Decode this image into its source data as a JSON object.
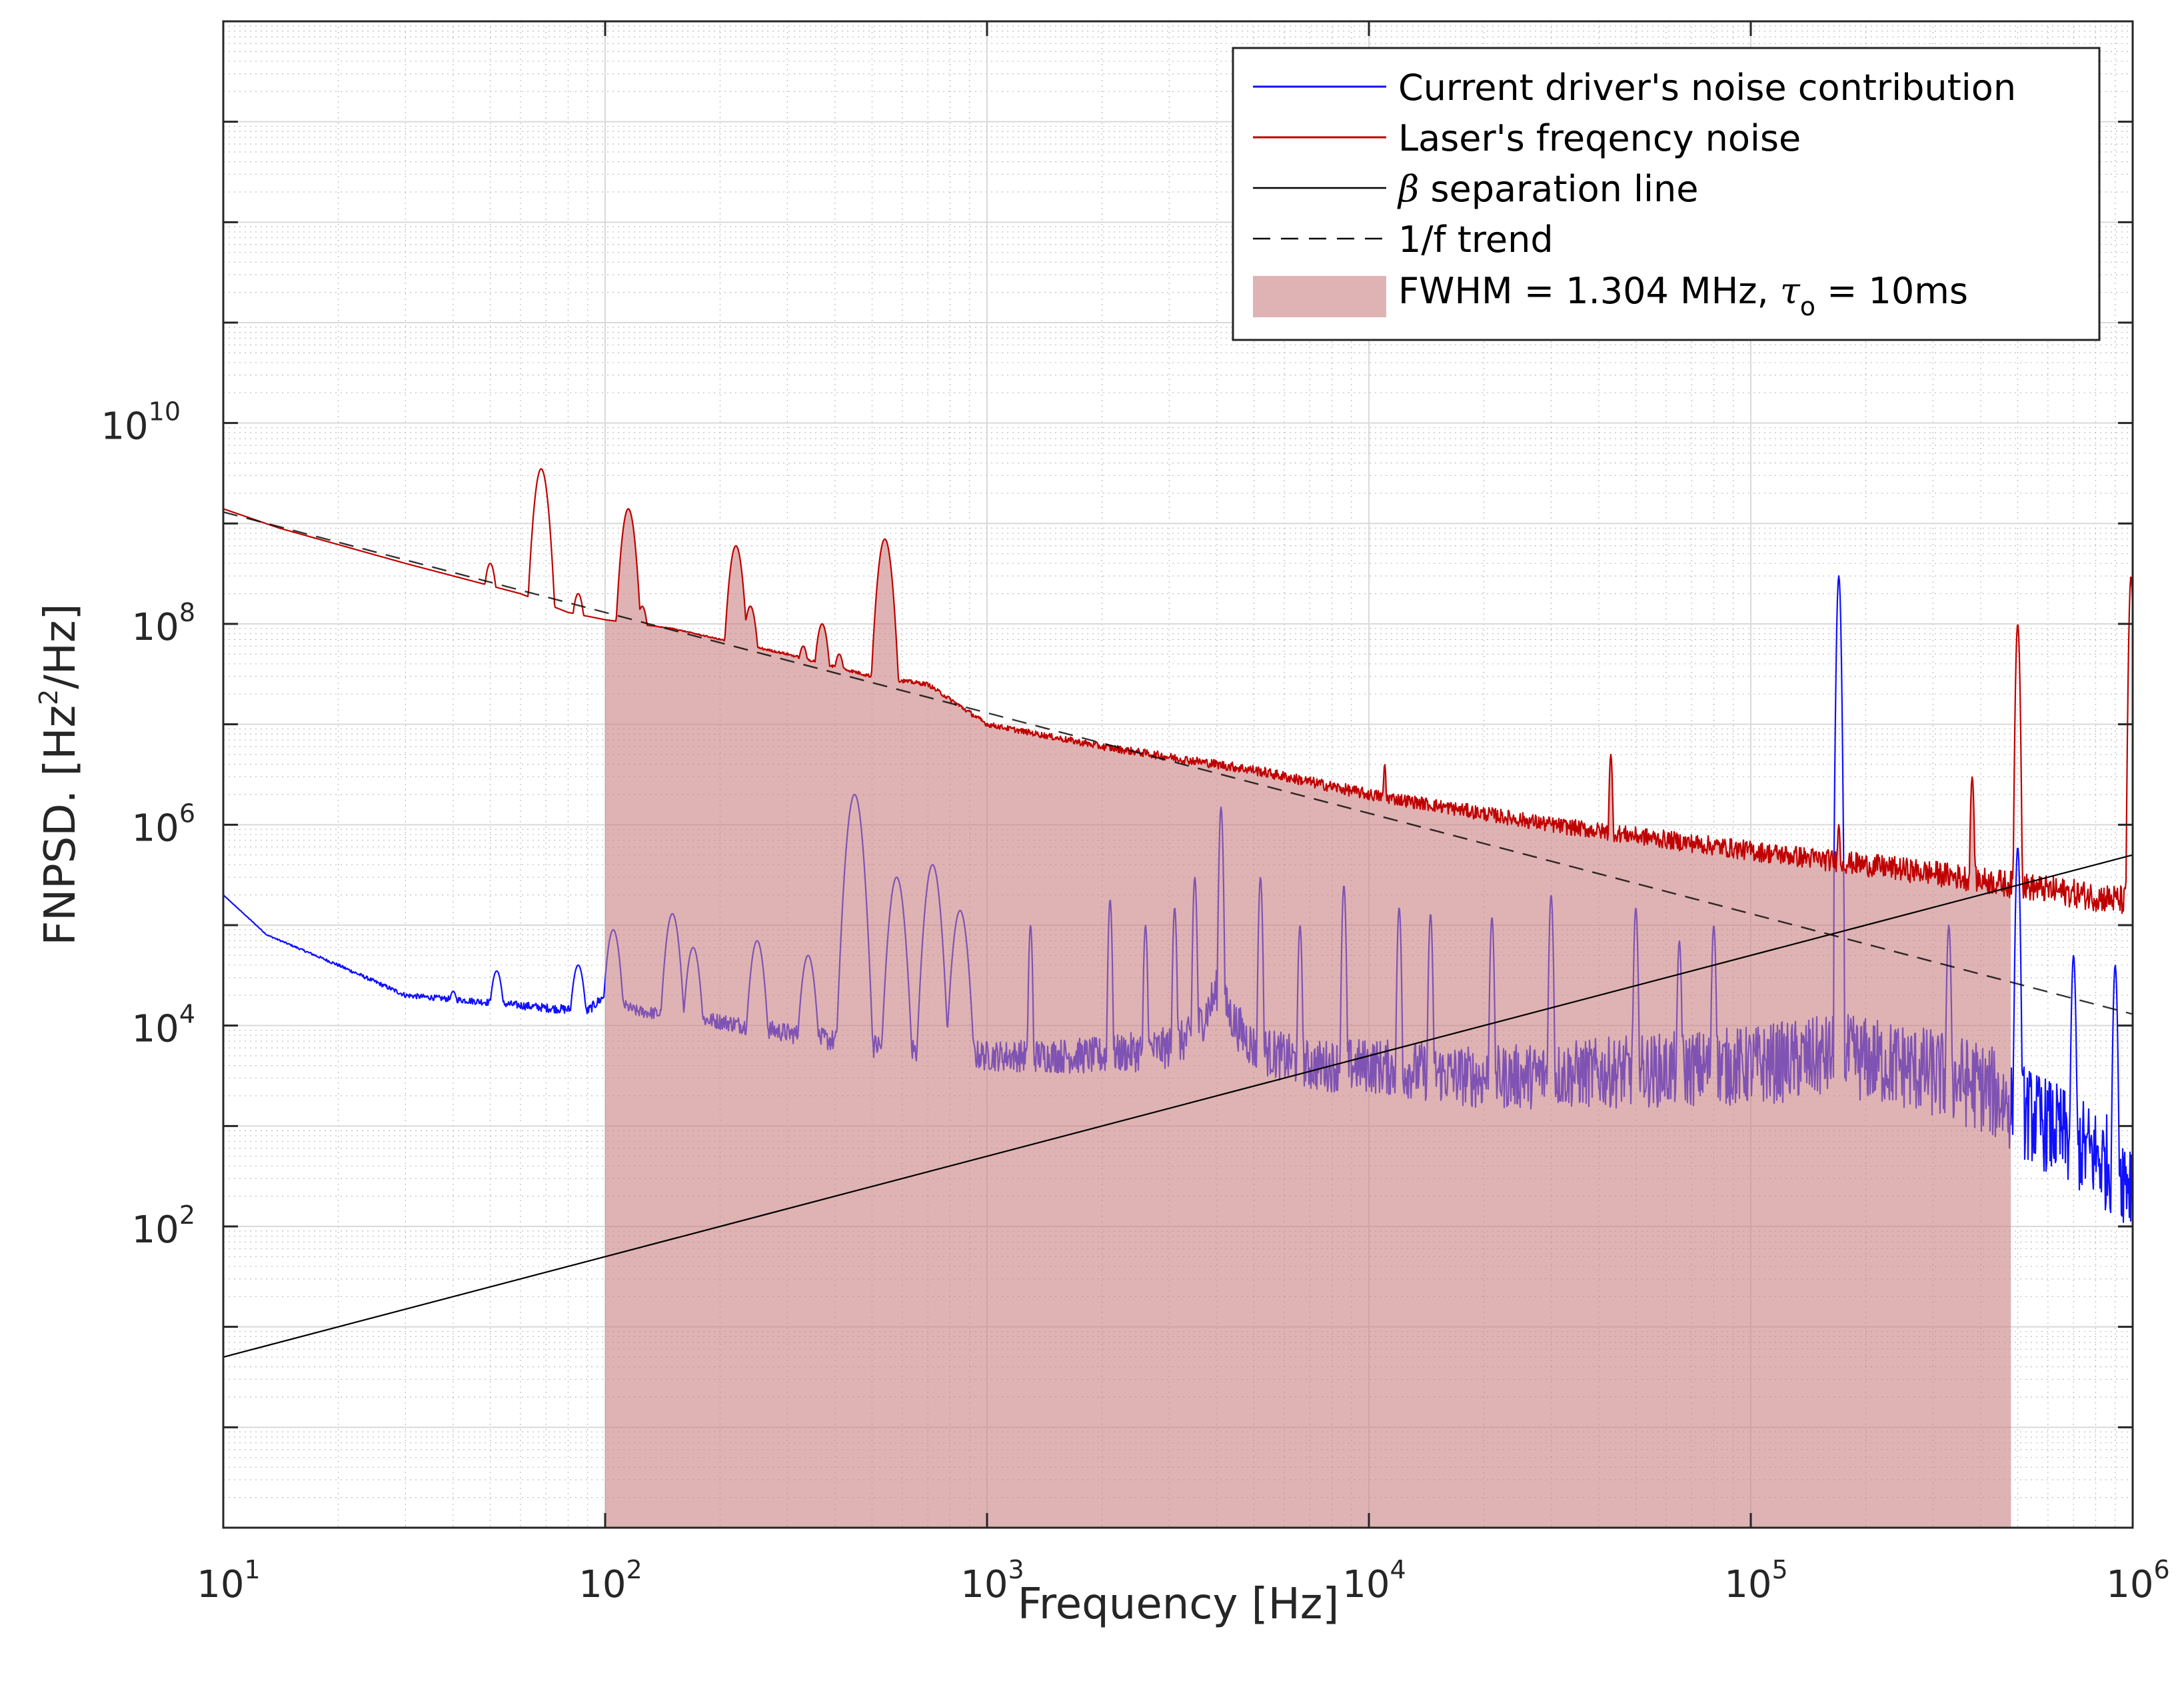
{
  "chart_data": {
    "type": "line",
    "title": "",
    "xlabel": "Frequency [Hz]",
    "ylabel_prefix": "FNPSD. [Hz",
    "ylabel_sup": "2",
    "ylabel_suffix": "/Hz]",
    "xscale": "log",
    "yscale": "log",
    "xlim": [
      10,
      1000000
    ],
    "ylim": [
      0.1,
      100000000000000
    ],
    "grid": true,
    "x_ticks": [
      {
        "base": "10",
        "exp": "1"
      },
      {
        "base": "10",
        "exp": "2"
      },
      {
        "base": "10",
        "exp": "3"
      },
      {
        "base": "10",
        "exp": "4"
      },
      {
        "base": "10",
        "exp": "5"
      },
      {
        "base": "10",
        "exp": "6"
      }
    ],
    "y_ticks": [
      {
        "base": "10",
        "exp": "2"
      },
      {
        "base": "10",
        "exp": "4"
      },
      {
        "base": "10",
        "exp": "6"
      },
      {
        "base": "10",
        "exp": "8"
      },
      {
        "base": "10",
        "exp": "10"
      }
    ],
    "legend_position": "top-right",
    "legend": {
      "current": "Current driver's noise contribution",
      "laser": "Laser's freqency noise",
      "beta_symbol": "β",
      "beta_text": " separation line",
      "trend": "1/f trend",
      "fwhm_prefix": "FWHM = 1.304 MHz, ",
      "tau_symbol": "τ",
      "tau_sub": "o",
      "fwhm_suffix": " = 10ms"
    },
    "colors": {
      "current": "#1010ff",
      "laser": "#c00000",
      "beta": "#000000",
      "trend": "#000000",
      "fill": "#c98080",
      "fill_alpha": 0.6,
      "grid": "#d9d9d9"
    },
    "series": [
      {
        "name": "Current driver's noise contribution",
        "baseline": [
          [
            10,
            200000
          ],
          [
            13,
            80000
          ],
          [
            20,
            40000
          ],
          [
            30,
            20000
          ],
          [
            50,
            17000
          ],
          [
            70,
            15000
          ],
          [
            90,
            14000
          ],
          [
            100,
            20000
          ],
          [
            120,
            14000
          ],
          [
            200,
            11000
          ],
          [
            400,
            7000
          ],
          [
            700,
            5500
          ],
          [
            1000,
            5000
          ],
          [
            2000,
            5000
          ],
          [
            3000,
            6000
          ],
          [
            3500,
            8000
          ],
          [
            4000,
            22000
          ],
          [
            4500,
            10000
          ],
          [
            5000,
            6000
          ],
          [
            7000,
            4000
          ],
          [
            10000,
            4000
          ],
          [
            20000,
            3000
          ],
          [
            50000,
            3500
          ],
          [
            100000,
            4000
          ],
          [
            170000,
            5000
          ],
          [
            250000,
            4000
          ],
          [
            400000,
            2500
          ],
          [
            600000,
            1000
          ],
          [
            1000000,
            300
          ]
        ],
        "peaks": [
          [
            40,
            22000
          ],
          [
            52,
            35000
          ],
          [
            85,
            40000
          ],
          [
            105,
            90000
          ],
          [
            150,
            130000
          ],
          [
            170,
            60000
          ],
          [
            250,
            70000
          ],
          [
            340,
            50000
          ],
          [
            450,
            2000000
          ],
          [
            580,
            300000
          ],
          [
            720,
            400000
          ],
          [
            850,
            140000
          ],
          [
            1300,
            100000
          ],
          [
            2100,
            180000
          ],
          [
            2600,
            100000
          ],
          [
            3100,
            150000
          ],
          [
            3500,
            300000
          ],
          [
            4100,
            1500000
          ],
          [
            5200,
            300000
          ],
          [
            6600,
            100000
          ],
          [
            8600,
            250000
          ],
          [
            12000,
            150000
          ],
          [
            14500,
            130000
          ],
          [
            21000,
            120000
          ],
          [
            30000,
            200000
          ],
          [
            50000,
            150000
          ],
          [
            65000,
            70000
          ],
          [
            80000,
            100000
          ],
          [
            170000,
            300000000
          ],
          [
            330000,
            100000
          ],
          [
            500000,
            600000
          ],
          [
            700000,
            50000
          ],
          [
            900000,
            40000
          ]
        ],
        "noise_dex": [
          0,
          0.1,
          0.3,
          0.55,
          0.8,
          1.0,
          1.4
        ]
      },
      {
        "name": "Laser's freqency noise",
        "baseline": [
          [
            10,
            1400000000
          ],
          [
            14,
            900000000
          ],
          [
            30,
            400000000
          ],
          [
            60,
            200000000
          ],
          [
            80,
            130000000
          ],
          [
            100,
            110000000
          ],
          [
            150,
            90000000
          ],
          [
            200,
            70000000
          ],
          [
            300,
            50000000
          ],
          [
            500,
            30000000
          ],
          [
            700,
            25000000
          ],
          [
            1000,
            10000000
          ],
          [
            2000,
            6000000
          ],
          [
            5000,
            3500000
          ],
          [
            10000,
            2000000
          ],
          [
            30000,
            1000000
          ],
          [
            100000,
            550000
          ],
          [
            300000,
            330000
          ],
          [
            1000000,
            170000
          ]
        ],
        "peaks": [
          [
            40,
            280000000
          ],
          [
            50,
            400000000
          ],
          [
            68,
            3500000000
          ],
          [
            85,
            200000000
          ],
          [
            115,
            1400000000
          ],
          [
            125,
            150000000
          ],
          [
            220,
            600000000
          ],
          [
            240,
            150000000
          ],
          [
            330,
            60000000
          ],
          [
            370,
            100000000
          ],
          [
            410,
            50000000
          ],
          [
            540,
            700000000
          ],
          [
            11000,
            4000000
          ],
          [
            43000,
            5000000
          ],
          [
            170000,
            1000000
          ],
          [
            380000,
            3000000
          ],
          [
            500000,
            100000000
          ],
          [
            990000,
            300000000
          ]
        ],
        "noise_dex": [
          0,
          0,
          0.05,
          0.12,
          0.2,
          0.3,
          0.35
        ]
      },
      {
        "name": "β separation line",
        "points": [
          [
            10,
            5
          ],
          [
            1000000,
            500000
          ]
        ]
      },
      {
        "name": "1/f trend",
        "points": [
          [
            10,
            1300000000
          ],
          [
            1000000,
            13000
          ]
        ]
      }
    ],
    "shaded_region": {
      "name": "FWHM = 1.304 MHz, τo = 10ms",
      "x_start": 100,
      "x_end": 480000,
      "upper": "laser"
    }
  }
}
